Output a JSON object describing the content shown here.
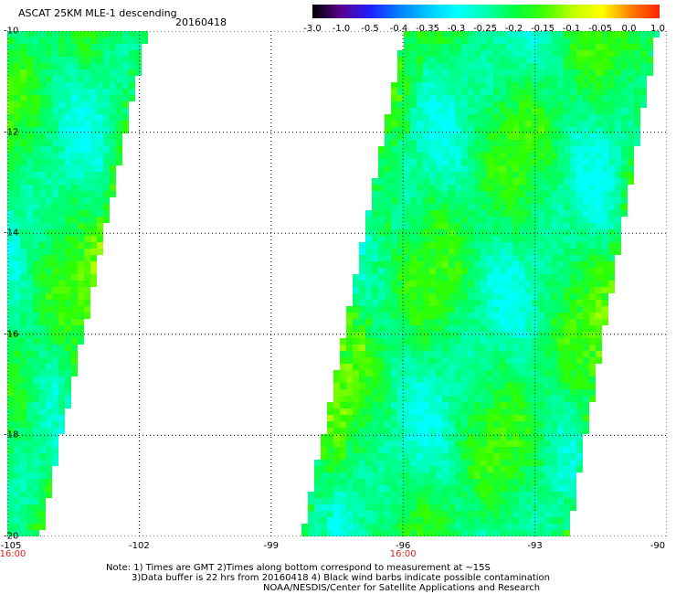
{
  "header": {
    "title": "ASCAT 25KM MLE-1 descending",
    "date": "20160418"
  },
  "colorbar": {
    "labels": [
      "-3.0",
      "-1.0",
      "-0.5",
      "-0.4",
      "-0.35",
      "-0.3",
      "-0.25",
      "-0.2",
      "-0.15",
      "-0.1",
      "-0.05",
      "0.0",
      "1.0"
    ],
    "colors": [
      "#000000",
      "#5a0090",
      "#2020ff",
      "#0080ff",
      "#00c8ff",
      "#00ffff",
      "#00ffb0",
      "#00ff40",
      "#40ff00",
      "#c0ff00",
      "#ffff00",
      "#ff8000",
      "#ff2000"
    ]
  },
  "map": {
    "lon_range": [
      -105,
      -90
    ],
    "lat_range": [
      -20,
      -10
    ],
    "x_ticks": [
      "-105",
      "-102",
      "-99",
      "-96",
      "-93",
      "-90"
    ],
    "y_ticks": [
      "-10",
      "-12",
      "-14",
      "-16",
      "-18",
      "-20"
    ],
    "time_labels": [
      "16:00",
      "16:00"
    ],
    "swaths": [
      {
        "name": "west",
        "top_lon": [
          -105,
          -101.9
        ],
        "bottom_lon": [
          -105,
          -104.3
        ]
      },
      {
        "name": "east",
        "top_lon": [
          -95.9,
          -90.3
        ],
        "bottom_lon": [
          -98.2,
          -92.3
        ]
      }
    ]
  },
  "notes": {
    "line1": "Note: 1) Times are GMT 2)Times along bottom correspond to measurement at ~15S",
    "line2": "3)Data buffer is 22 hrs from 20160418 4) Black wind barbs indicate possible contamination",
    "credit": "NOAA/NESDIS/Center for Satellite Applications and Research"
  }
}
